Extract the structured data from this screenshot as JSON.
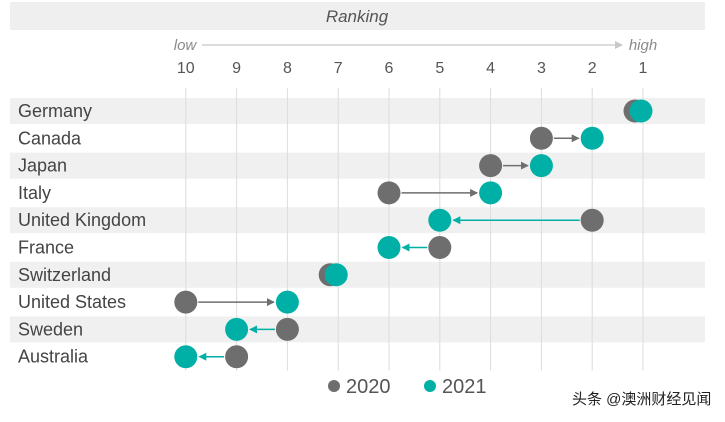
{
  "chart_data": {
    "type": "dumbbell",
    "title": "Ranking",
    "axis": {
      "low_label": "low",
      "high_label": "high",
      "ticks": [
        10,
        9,
        8,
        7,
        6,
        5,
        4,
        3,
        2,
        1
      ],
      "xlim": [
        10,
        1
      ],
      "grid": true
    },
    "categories": [
      "Germany",
      "Canada",
      "Japan",
      "Italy",
      "United Kingdom",
      "France",
      "Switzerland",
      "United States",
      "Sweden",
      "Australia"
    ],
    "series": [
      {
        "name": "2020",
        "color": "#6e6e6e",
        "values": [
          1,
          3,
          4,
          6,
          2,
          5,
          7,
          10,
          8,
          9
        ]
      },
      {
        "name": "2021",
        "color": "#00b0a6",
        "values": [
          1,
          2,
          3,
          4,
          5,
          6,
          7,
          8,
          9,
          10
        ]
      }
    ],
    "legend": {
      "position": "bottom-center",
      "labels": [
        "2020",
        "2021"
      ]
    }
  },
  "watermark": "头条 @澳洲财经见闻"
}
